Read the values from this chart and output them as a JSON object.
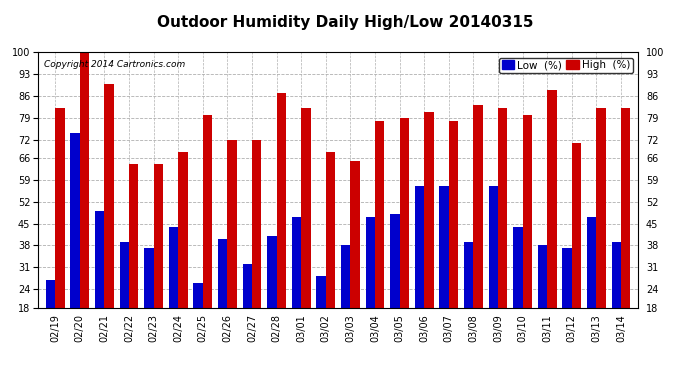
{
  "title": "Outdoor Humidity Daily High/Low 20140315",
  "copyright": "Copyright 2014 Cartronics.com",
  "legend_low": "Low  (%)",
  "legend_high": "High  (%)",
  "dates": [
    "02/19",
    "02/20",
    "02/21",
    "02/22",
    "02/23",
    "02/24",
    "02/25",
    "02/26",
    "02/27",
    "02/28",
    "03/01",
    "03/02",
    "03/03",
    "03/04",
    "03/05",
    "03/06",
    "03/07",
    "03/08",
    "03/09",
    "03/10",
    "03/11",
    "03/12",
    "03/13",
    "03/14"
  ],
  "high_values": [
    82,
    100,
    90,
    64,
    64,
    68,
    80,
    72,
    72,
    87,
    82,
    68,
    65,
    78,
    79,
    81,
    78,
    83,
    82,
    80,
    88,
    71,
    82,
    82
  ],
  "low_values": [
    27,
    74,
    49,
    39,
    37,
    44,
    26,
    40,
    32,
    41,
    47,
    28,
    38,
    47,
    48,
    57,
    57,
    39,
    57,
    44,
    38,
    37,
    47,
    39
  ],
  "ylim": [
    18,
    100
  ],
  "yticks": [
    18,
    24,
    31,
    38,
    45,
    52,
    59,
    66,
    72,
    79,
    86,
    93,
    100
  ],
  "bar_width": 0.38,
  "low_color": "#0000cc",
  "high_color": "#cc0000",
  "background_color": "#ffffff",
  "plot_bg_color": "#ffffff",
  "grid_color": "#b0b0b0",
  "title_fontsize": 11,
  "tick_fontsize": 7,
  "legend_fontsize": 7.5
}
